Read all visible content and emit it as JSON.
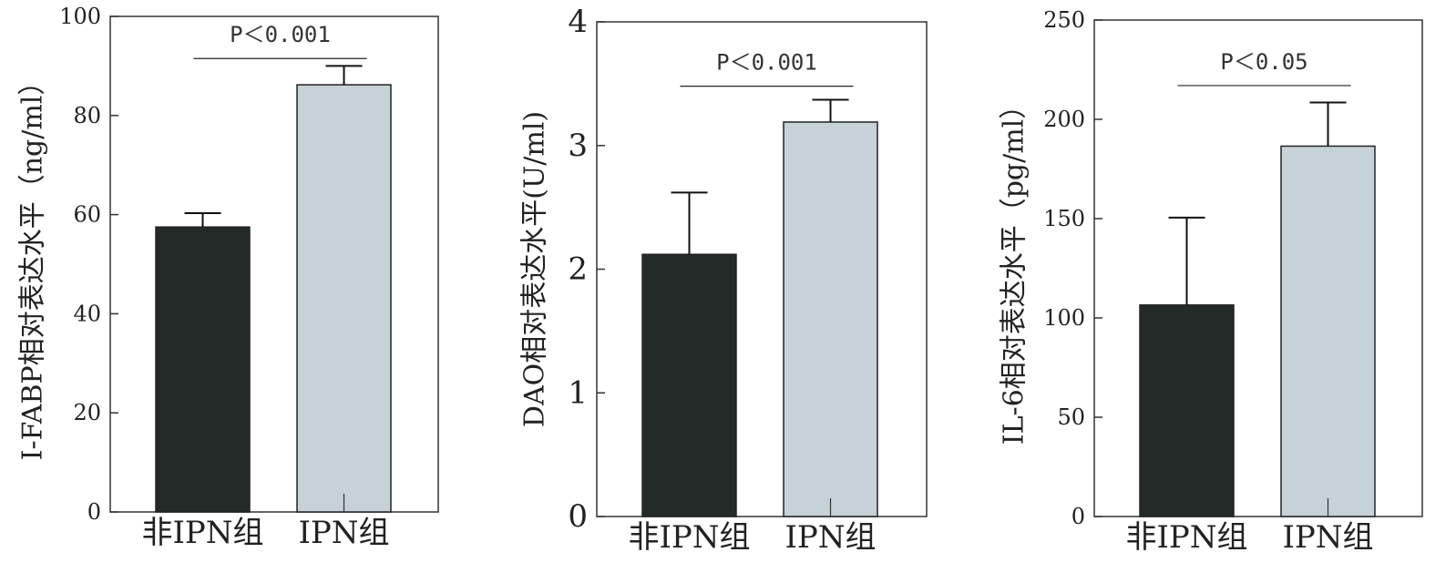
{
  "colors": {
    "dark_bar": "#232a28",
    "light_bar": "#c7d1d8",
    "axis": "#333333"
  },
  "chart_data": [
    {
      "type": "bar",
      "categories": [
        "非IPN组",
        "IPN组"
      ],
      "values": [
        57.5,
        86.2
      ],
      "error": [
        2.8,
        3.8
      ],
      "ylim": [
        0,
        100
      ],
      "yticks": [
        0,
        20,
        40,
        60,
        80,
        100
      ],
      "ylabel": "I-FABP相对表达水平（ng/ml）",
      "xlabel": "",
      "annotation": "P＜0.001",
      "annotation_y": 91.5,
      "grid": false
    },
    {
      "type": "bar",
      "categories": [
        "非IPN组",
        "IPN组"
      ],
      "values": [
        2.12,
        3.19
      ],
      "error": [
        0.5,
        0.18
      ],
      "ylim": [
        0,
        4
      ],
      "yticks": [
        0,
        1,
        2,
        3,
        4
      ],
      "ylabel": "DAO相对表达水平(U/ml)",
      "xlabel": "",
      "annotation": "P＜0.001",
      "annotation_y": 3.48,
      "grid": false
    },
    {
      "type": "bar",
      "categories": [
        "非IPN组",
        "IPN组"
      ],
      "values": [
        106.5,
        186.5
      ],
      "error": [
        44,
        22
      ],
      "ylim": [
        0,
        250
      ],
      "yticks": [
        0,
        50,
        100,
        150,
        200,
        250
      ],
      "ylabel": "IL-6相对表达水平（pg/ml）",
      "xlabel": "",
      "annotation": "P＜0.05",
      "annotation_y": 217,
      "grid": false
    }
  ]
}
